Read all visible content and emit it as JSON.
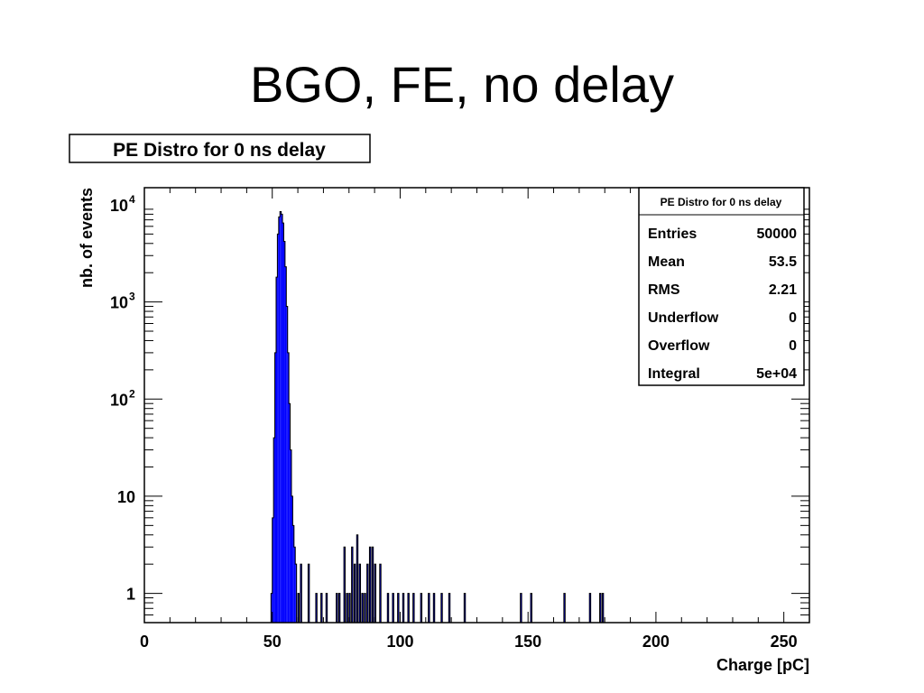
{
  "slide": {
    "title": "BGO, FE, no delay"
  },
  "colors": {
    "fill": "#0000ff",
    "line": "#000000",
    "background": "#ffffff"
  },
  "chart_data": {
    "type": "bar",
    "title": "PE Distro for 0 ns delay",
    "xlabel": "Charge [pC]",
    "ylabel": "nb. of events",
    "xlim": [
      0,
      260
    ],
    "ylim": [
      0.5,
      15000
    ],
    "yscale": "log",
    "grid": false,
    "x_ticks": [
      "0",
      "50",
      "100",
      "150",
      "200",
      "250"
    ],
    "y_ticks": [
      {
        "value": 1,
        "base": "1",
        "exp": ""
      },
      {
        "value": 10,
        "base": "10",
        "exp": ""
      },
      {
        "value": 100,
        "base": "10",
        "exp": "2"
      },
      {
        "value": 1000,
        "base": "10",
        "exp": "3"
      },
      {
        "value": 10000,
        "base": "10",
        "exp": "4"
      }
    ],
    "peak_bins": {
      "x": [
        49.5,
        50,
        50.5,
        51,
        51.5,
        52,
        52.5,
        53,
        53.5,
        54,
        54.5,
        55,
        55.5,
        56,
        56.5,
        57,
        57.5,
        58,
        58.5,
        59
      ],
      "values": [
        1,
        6,
        40,
        300,
        1800,
        5000,
        7500,
        8500,
        8000,
        6500,
        4200,
        2300,
        900,
        300,
        90,
        30,
        10,
        5,
        3,
        2
      ]
    },
    "tail_bins": {
      "x": [
        60,
        61,
        64,
        67,
        69,
        71,
        75,
        76,
        78,
        79,
        80,
        81,
        82,
        83,
        84,
        85,
        86,
        87,
        88,
        89,
        90,
        92,
        95,
        97,
        99,
        101,
        103,
        105,
        108,
        111,
        113,
        116,
        119,
        125,
        147,
        151,
        164,
        174,
        178,
        179
      ],
      "values": [
        1,
        2,
        2,
        1,
        1,
        1,
        1,
        1,
        3,
        1,
        1,
        3,
        2,
        4,
        2,
        1,
        1,
        2,
        3,
        3,
        2,
        2,
        1,
        1,
        1,
        1,
        1,
        1,
        1,
        1,
        1,
        1,
        1,
        1,
        1,
        1,
        1,
        1,
        1,
        1
      ]
    },
    "stats_box": {
      "title": "PE Distro for 0 ns delay",
      "rows": [
        {
          "label": "Entries",
          "value": "50000"
        },
        {
          "label": "Mean",
          "value": "53.5"
        },
        {
          "label": "RMS",
          "value": "2.21"
        },
        {
          "label": "Underflow",
          "value": "0"
        },
        {
          "label": "Overflow",
          "value": "0"
        },
        {
          "label": "Integral",
          "value": "5e+04"
        }
      ]
    }
  }
}
